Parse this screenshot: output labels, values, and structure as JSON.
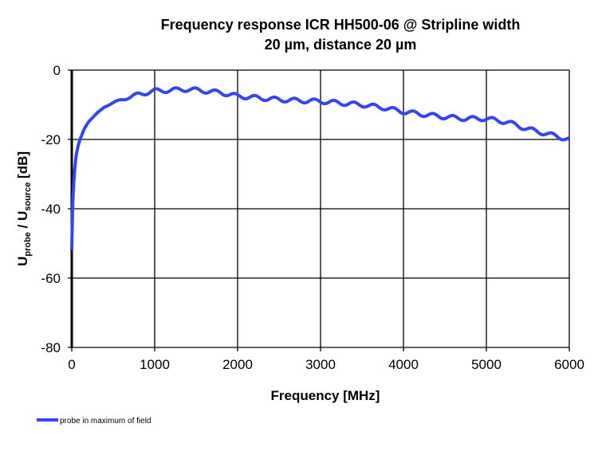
{
  "chart_data": {
    "type": "line",
    "title_line1": "Frequency response ICR HH500-06 @ Stripline  width",
    "title_line2": "20 µm, distance 20 µm",
    "xlabel": "Frequency [MHz]",
    "ylabel_main": "U",
    "ylabel_sub1": "probe",
    "ylabel_mid": " / U",
    "ylabel_sub2": "source",
    "ylabel_end": " [dB]",
    "xlim": [
      0,
      6000
    ],
    "ylim": [
      -80,
      0
    ],
    "xticks": [
      0,
      1000,
      2000,
      3000,
      4000,
      5000,
      6000
    ],
    "yticks": [
      0,
      -20,
      -40,
      -60,
      -80
    ],
    "grid": true,
    "legend_position": "bottom-left",
    "series": [
      {
        "name": "probe in maximum of field",
        "color": "#3347f0",
        "x": [
          0,
          10,
          20,
          35,
          50,
          75,
          100,
          150,
          200,
          300,
          400,
          500,
          600,
          700,
          800,
          900,
          1000,
          1200,
          1400,
          1600,
          1800,
          2000,
          2250,
          2500,
          2750,
          3000,
          3250,
          3500,
          3750,
          4000,
          4250,
          4500,
          4750,
          5000,
          5250,
          5500,
          5750,
          6000
        ],
        "y": [
          -52,
          -40,
          -34,
          -29,
          -25,
          -22,
          -20,
          -17,
          -15,
          -12.5,
          -10.5,
          -9.5,
          -8.5,
          -7.8,
          -7,
          -6.5,
          -6,
          -5.8,
          -5.5,
          -6,
          -6.5,
          -7.5,
          -8,
          -8.5,
          -8.8,
          -9,
          -9.5,
          -10,
          -10.8,
          -12,
          -12.8,
          -13.5,
          -14,
          -14,
          -15,
          -17,
          -18.5,
          -20
        ]
      }
    ]
  }
}
